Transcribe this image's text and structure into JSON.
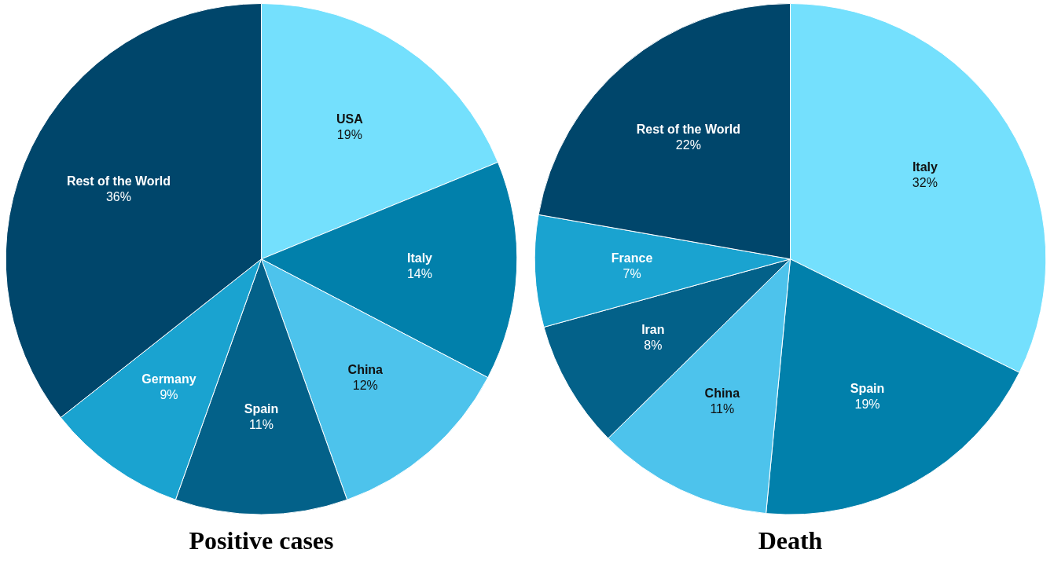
{
  "chart_data": [
    {
      "type": "pie",
      "title": "Positive cases",
      "categories": [
        "USA",
        "Italy",
        "China",
        "Spain",
        "Germany",
        "Rest of the World"
      ],
      "values": [
        19,
        14,
        12,
        11,
        9,
        36
      ],
      "value_labels": [
        "19%",
        "14%",
        "12%",
        "11%",
        "9%",
        "36%"
      ],
      "colors": [
        "#74e0fd",
        "#0180ab",
        "#4dc3ec",
        "#036189",
        "#1aa3d0",
        "#00466b"
      ],
      "legend": false
    },
    {
      "type": "pie",
      "title": "Death",
      "categories": [
        "Italy",
        "Spain",
        "China",
        "Iran",
        "France",
        "Rest of the World"
      ],
      "values": [
        32,
        19,
        11,
        8,
        7,
        22
      ],
      "value_labels": [
        "32%",
        "19%",
        "11%",
        "8%",
        "7%",
        "22%"
      ],
      "colors": [
        "#74e0fd",
        "#0180ab",
        "#4dc3ec",
        "#036189",
        "#1aa3d0",
        "#00466b"
      ],
      "legend": false
    }
  ]
}
